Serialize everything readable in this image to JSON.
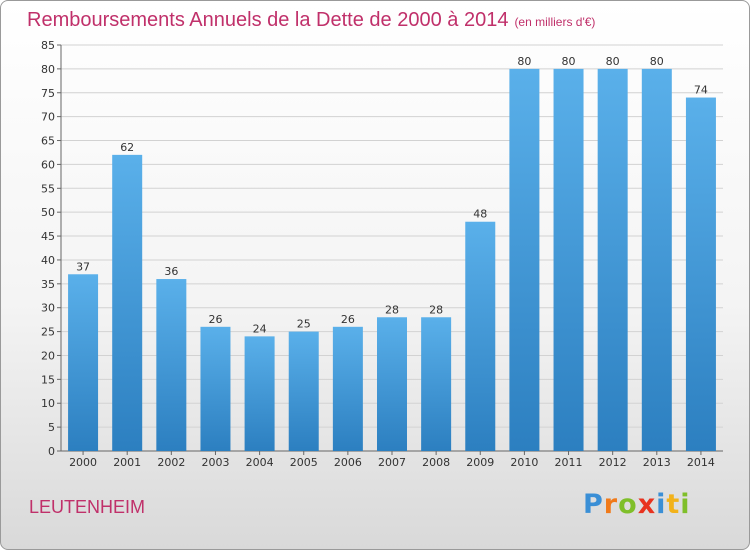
{
  "header": {
    "title": "Remboursements Annuels de la Dette de 2000 à 2014",
    "unit": "(en milliers d'€)"
  },
  "footer": {
    "commune": "LEUTENHEIM",
    "logo_letters": [
      "P",
      "r",
      "o",
      "x",
      "i",
      "t",
      "i"
    ]
  },
  "colors": {
    "title": "#c0306a",
    "bar_top": "#5ab0ea",
    "bar_bottom": "#2c7fc0",
    "logo_letters": [
      "#3a8fd6",
      "#f07a1a",
      "#7fbf2a",
      "#e8331f",
      "#3a8fd6",
      "#f2b21a",
      "#7fbf2a"
    ]
  },
  "chart_data": {
    "type": "bar",
    "title": "Remboursements Annuels de la Dette de 2000 à 2014",
    "xlabel": "",
    "ylabel": "",
    "categories": [
      "2000",
      "2001",
      "2002",
      "2003",
      "2004",
      "2005",
      "2006",
      "2007",
      "2008",
      "2009",
      "2010",
      "2011",
      "2012",
      "2013",
      "2014"
    ],
    "values": [
      37,
      62,
      36,
      26,
      24,
      25,
      26,
      28,
      28,
      48,
      80,
      80,
      80,
      80,
      74
    ],
    "ylim": [
      0,
      85
    ],
    "yticks": [
      0,
      5,
      10,
      15,
      20,
      25,
      30,
      35,
      40,
      45,
      50,
      55,
      60,
      65,
      70,
      75,
      80,
      85
    ],
    "grid": true,
    "legend": "none"
  }
}
